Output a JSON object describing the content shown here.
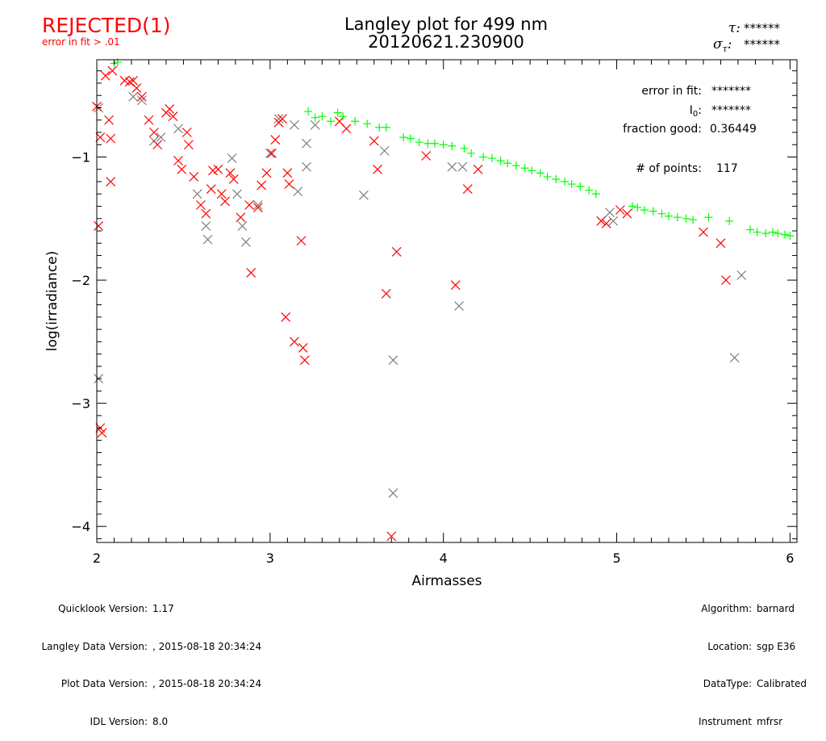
{
  "status": {
    "label": "REJECTED(1)",
    "reason": "error in fit > .01",
    "color": "#ff0000"
  },
  "header": {
    "title": "Langley plot for 499 nm",
    "subtitle": "20120621.230900",
    "tau_label": "τ:",
    "tau_value": "******",
    "sigma_label": "σ",
    "sigma_sub": "τ",
    "sigma_colon": ":",
    "sigma_value": "******"
  },
  "stats": {
    "error_label": "error in fit:",
    "error_value": "*******",
    "i0_label": "I",
    "i0_sub": "0",
    "i0_colon": ":",
    "i0_value": "*******",
    "fraction_label": "fraction good:",
    "fraction_value": "0.36449",
    "points_label": "# of points:",
    "points_value": "117"
  },
  "footer_left": [
    {
      "label": "Quicklook Version:",
      "value": "1.17"
    },
    {
      "label": "Langley Data Version:",
      "value": ", 2015-08-18 20:34:24"
    },
    {
      "label": "Plot Data Version:",
      "value": ", 2015-08-18 20:34:24"
    },
    {
      "label": "IDL Version:",
      "value": "8.0"
    }
  ],
  "footer_right": [
    {
      "label": "Algorithm:",
      "value": "barnard"
    },
    {
      "label": "Location:",
      "value": "sgp E36"
    },
    {
      "label": "DataType:",
      "value": "Calibrated"
    },
    {
      "label": "Instrument",
      "value": "mfrsr"
    }
  ],
  "chart_data": {
    "type": "scatter",
    "title": "Langley plot for 499 nm",
    "xlabel": "Airmasses",
    "ylabel": "log(irradiance)",
    "xlim": [
      2,
      6.04
    ],
    "ylim": [
      -4.13,
      -0.21
    ],
    "xticks": [
      2,
      3,
      4,
      5,
      6
    ],
    "yticks": [
      -1,
      -2,
      -3,
      -4
    ],
    "grid": false,
    "series": [
      {
        "name": "good",
        "marker": "plus",
        "color": "#00ff00",
        "points": [
          [
            2.1,
            -0.24
          ],
          [
            2.12,
            -0.23
          ],
          [
            3.22,
            -0.63
          ],
          [
            3.26,
            -0.68
          ],
          [
            3.3,
            -0.67
          ],
          [
            3.35,
            -0.71
          ],
          [
            3.39,
            -0.64
          ],
          [
            3.42,
            -0.67
          ],
          [
            3.49,
            -0.71
          ],
          [
            3.56,
            -0.73
          ],
          [
            3.63,
            -0.76
          ],
          [
            3.67,
            -0.76
          ],
          [
            3.77,
            -0.84
          ],
          [
            3.81,
            -0.85
          ],
          [
            3.86,
            -0.88
          ],
          [
            3.91,
            -0.89
          ],
          [
            3.95,
            -0.89
          ],
          [
            4.0,
            -0.9
          ],
          [
            4.05,
            -0.91
          ],
          [
            4.12,
            -0.93
          ],
          [
            4.16,
            -0.97
          ],
          [
            4.23,
            -1.0
          ],
          [
            4.28,
            -1.01
          ],
          [
            4.33,
            -1.03
          ],
          [
            4.37,
            -1.05
          ],
          [
            4.42,
            -1.07
          ],
          [
            4.47,
            -1.09
          ],
          [
            4.51,
            -1.11
          ],
          [
            4.56,
            -1.13
          ],
          [
            4.6,
            -1.16
          ],
          [
            4.65,
            -1.18
          ],
          [
            4.7,
            -1.2
          ],
          [
            4.74,
            -1.22
          ],
          [
            4.79,
            -1.24
          ],
          [
            4.84,
            -1.27
          ],
          [
            4.88,
            -1.3
          ],
          [
            5.09,
            -1.4
          ],
          [
            5.12,
            -1.41
          ],
          [
            5.16,
            -1.43
          ],
          [
            5.21,
            -1.44
          ],
          [
            5.26,
            -1.46
          ],
          [
            5.3,
            -1.48
          ],
          [
            5.35,
            -1.49
          ],
          [
            5.4,
            -1.5
          ],
          [
            5.44,
            -1.51
          ],
          [
            5.53,
            -1.49
          ],
          [
            5.65,
            -1.52
          ],
          [
            5.77,
            -1.59
          ],
          [
            5.81,
            -1.61
          ],
          [
            5.86,
            -1.62
          ],
          [
            5.9,
            -1.61
          ],
          [
            5.93,
            -1.62
          ],
          [
            5.97,
            -1.63
          ],
          [
            6.0,
            -1.64
          ]
        ]
      },
      {
        "name": "rejected-gray",
        "marker": "x",
        "color": "#808080",
        "points": [
          [
            2.01,
            -2.8
          ],
          [
            2.01,
            -0.6
          ],
          [
            2.21,
            -0.51
          ],
          [
            2.26,
            -0.54
          ],
          [
            2.33,
            -0.87
          ],
          [
            2.37,
            -0.84
          ],
          [
            2.47,
            -0.77
          ],
          [
            2.58,
            -1.3
          ],
          [
            2.63,
            -1.56
          ],
          [
            2.64,
            -1.67
          ],
          [
            2.78,
            -1.01
          ],
          [
            2.81,
            -1.3
          ],
          [
            2.84,
            -1.56
          ],
          [
            2.86,
            -1.69
          ],
          [
            2.93,
            -1.39
          ],
          [
            3.0,
            -0.97
          ],
          [
            3.05,
            -0.69
          ],
          [
            3.14,
            -0.74
          ],
          [
            3.16,
            -1.28
          ],
          [
            3.21,
            -1.08
          ],
          [
            3.21,
            -0.89
          ],
          [
            3.26,
            -0.74
          ],
          [
            3.54,
            -1.31
          ],
          [
            3.66,
            -0.95
          ],
          [
            3.71,
            -2.65
          ],
          [
            3.71,
            -3.73
          ],
          [
            4.05,
            -1.08
          ],
          [
            4.09,
            -2.21
          ],
          [
            4.11,
            -1.08
          ],
          [
            4.96,
            -1.45
          ],
          [
            4.98,
            -1.52
          ],
          [
            5.68,
            -2.63
          ],
          [
            5.72,
            -1.96
          ]
        ]
      },
      {
        "name": "rejected-red",
        "marker": "x",
        "color": "#ff0000",
        "points": [
          [
            2.0,
            -0.59
          ],
          [
            2.01,
            -1.56
          ],
          [
            2.02,
            -3.2
          ],
          [
            2.03,
            -3.24
          ],
          [
            2.02,
            -0.84
          ],
          [
            2.08,
            -0.85
          ],
          [
            2.08,
            -1.2
          ],
          [
            2.07,
            -0.7
          ],
          [
            2.05,
            -0.34
          ],
          [
            2.09,
            -0.3
          ],
          [
            2.16,
            -0.38
          ],
          [
            2.19,
            -0.39
          ],
          [
            2.21,
            -0.38
          ],
          [
            2.23,
            -0.44
          ],
          [
            2.26,
            -0.51
          ],
          [
            2.3,
            -0.7
          ],
          [
            2.33,
            -0.8
          ],
          [
            2.35,
            -0.9
          ],
          [
            2.4,
            -0.64
          ],
          [
            2.42,
            -0.61
          ],
          [
            2.44,
            -0.67
          ],
          [
            2.47,
            -1.03
          ],
          [
            2.49,
            -1.1
          ],
          [
            2.52,
            -0.8
          ],
          [
            2.53,
            -0.9
          ],
          [
            2.56,
            -1.16
          ],
          [
            2.6,
            -1.39
          ],
          [
            2.63,
            -1.46
          ],
          [
            2.66,
            -1.26
          ],
          [
            2.67,
            -1.11
          ],
          [
            2.7,
            -1.1
          ],
          [
            2.72,
            -1.3
          ],
          [
            2.74,
            -1.36
          ],
          [
            2.77,
            -1.13
          ],
          [
            2.79,
            -1.18
          ],
          [
            2.83,
            -1.49
          ],
          [
            2.88,
            -1.39
          ],
          [
            2.89,
            -1.94
          ],
          [
            2.93,
            -1.41
          ],
          [
            2.95,
            -1.23
          ],
          [
            2.98,
            -1.13
          ],
          [
            3.01,
            -0.97
          ],
          [
            3.03,
            -0.86
          ],
          [
            3.05,
            -0.72
          ],
          [
            3.07,
            -0.69
          ],
          [
            3.09,
            -2.3
          ],
          [
            3.1,
            -1.13
          ],
          [
            3.11,
            -1.22
          ],
          [
            3.14,
            -2.5
          ],
          [
            3.18,
            -1.68
          ],
          [
            3.19,
            -2.55
          ],
          [
            3.2,
            -2.65
          ],
          [
            3.4,
            -0.71
          ],
          [
            3.44,
            -0.77
          ],
          [
            3.6,
            -0.87
          ],
          [
            3.62,
            -1.1
          ],
          [
            3.67,
            -2.11
          ],
          [
            3.7,
            -4.08
          ],
          [
            3.73,
            -1.77
          ],
          [
            3.9,
            -0.99
          ],
          [
            4.07,
            -2.04
          ],
          [
            4.14,
            -1.26
          ],
          [
            4.2,
            -1.1
          ],
          [
            4.91,
            -1.52
          ],
          [
            4.94,
            -1.54
          ],
          [
            5.02,
            -1.43
          ],
          [
            5.06,
            -1.46
          ],
          [
            5.5,
            -1.61
          ],
          [
            5.6,
            -1.7
          ],
          [
            5.63,
            -2.0
          ]
        ]
      }
    ]
  }
}
